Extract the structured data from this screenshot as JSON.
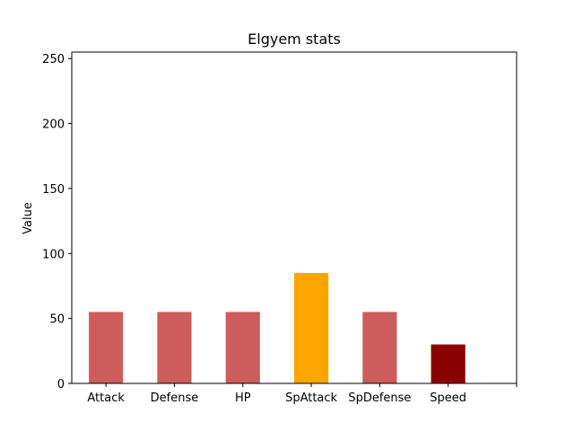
{
  "chart_data": {
    "type": "bar",
    "title": "Elgyem stats",
    "xlabel": "",
    "ylabel": "Value",
    "categories": [
      "Attack",
      "Defense",
      "HP",
      "SpAttack",
      "SpDefense",
      "Speed"
    ],
    "values": [
      55,
      55,
      55,
      85,
      55,
      30
    ],
    "colors": [
      "#cd5c5c",
      "#cd5c5c",
      "#cd5c5c",
      "#ffa500",
      "#cd5c5c",
      "#8b0000"
    ],
    "ylim": [
      0,
      255
    ],
    "yticks": [
      0,
      50,
      100,
      150,
      200,
      250
    ],
    "grid": false,
    "legend": "none"
  }
}
